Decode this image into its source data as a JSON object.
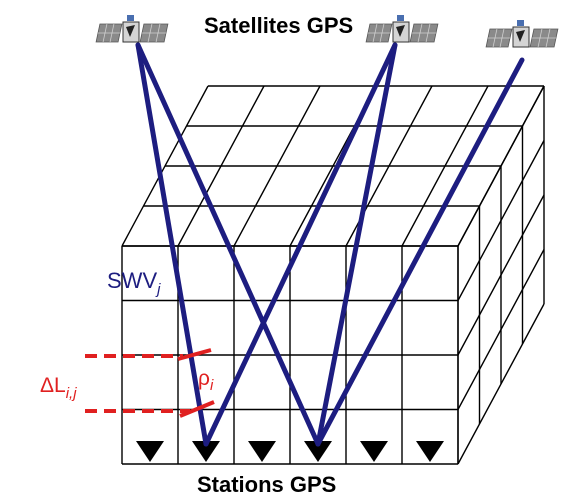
{
  "labels": {
    "satellites": "Satellites GPS",
    "stations": "Stations GPS",
    "swv": "SWV",
    "swv_sub": "j",
    "rho": "ρ",
    "rho_sub": "i",
    "delta_l": "ΔL",
    "delta_l_sub": "i,j"
  },
  "colors": {
    "ray": "#1d1d80",
    "grid": "#000000",
    "marker": "#e02020"
  },
  "icons": [
    "satellite-icon",
    "satellite-icon",
    "satellite-icon",
    "station-icon"
  ]
}
